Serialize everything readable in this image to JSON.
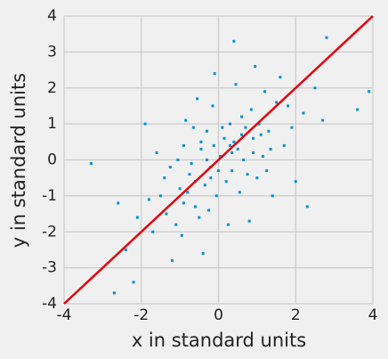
{
  "chart_data": {
    "type": "scatter",
    "xlabel": "x in standard units",
    "ylabel": "y in standard units",
    "x": [
      -0.12,
      0.35,
      -0.8,
      1.1,
      0.6,
      -1.4,
      0.9,
      -0.3,
      0.2,
      -0.6,
      1.5,
      -1.1,
      0.05,
      0.75,
      -0.45,
      1.9,
      -1.8,
      0.4,
      -0.2,
      1.2,
      -0.9,
      0.3,
      -0.05,
      0.65,
      -1.25,
      1.35,
      -0.7,
      0.15,
      0.85,
      -0.35,
      2.2,
      -2.1,
      0.55,
      -0.95,
      1.0,
      -0.15,
      0.45,
      -1.6,
      1.7,
      -0.5,
      0.1,
      -0.25,
      0.7,
      -1.0,
      1.25,
      -0.65,
      0.25,
      -1.35,
      1.6,
      -0.85,
      2.5,
      -2.4,
      0.95,
      -0.4,
      0.5,
      -1.2,
      1.4,
      -0.1,
      0.8,
      -0.55,
      3.9,
      3.6,
      2.8,
      -2.7,
      -3.3,
      -2.2,
      2.3,
      0.4,
      -1.9,
      2.0,
      -0.3,
      1.05,
      -0.75,
      0.6,
      -1.5,
      1.8,
      -0.2,
      0.35,
      -1.05,
      1.15,
      -2.6,
      2.7,
      -0.9,
      0.0,
      0.3,
      -0.6,
      1.3,
      -1.7,
      0.9,
      -0.45
    ],
    "y": [
      0.4,
      -0.3,
      -0.9,
      0.7,
      1.2,
      -0.5,
      0.2,
      0.8,
      -0.6,
      -1.3,
      1.6,
      -1.8,
      0.1,
      -0.4,
      0.3,
      0.9,
      -1.1,
      0.5,
      -0.2,
      1.9,
      0.4,
      1.0,
      -1.0,
      0.0,
      -0.2,
      0.3,
      -0.1,
      0.6,
      1.4,
      -0.7,
      1.3,
      -1.6,
      -0.9,
      -2.1,
      -0.5,
      1.5,
      2.1,
      0.2,
      0.4,
      -1.6,
      0.9,
      -1.4,
      0.9,
      -0.8,
      -0.3,
      0.9,
      -1.8,
      -1.5,
      2.3,
      1.1,
      2.0,
      -2.5,
      2.6,
      -2.6,
      0.3,
      -2.8,
      -1.0,
      2.4,
      -1.7,
      1.7,
      1.9,
      1.4,
      3.4,
      -3.7,
      -0.1,
      -3.4,
      -1.3,
      3.3,
      1.0,
      -0.6,
      0.0,
      1.0,
      -0.4,
      0.7,
      -1.0,
      1.5,
      -0.5,
      0.2,
      0.0,
      0.1,
      -1.2,
      1.1,
      -1.2,
      -0.3,
      0.4,
      -0.6,
      0.8,
      -2.0,
      0.6,
      0.5
    ],
    "color": "#008fd5",
    "fit_line": {
      "x": [
        -4,
        4
      ],
      "y": [
        -4,
        4
      ],
      "color": "#e5000b"
    },
    "xlim": [
      -4,
      4
    ],
    "ylim": [
      -4,
      4
    ],
    "xticks": [
      -4,
      -2,
      0,
      2,
      4
    ],
    "yticks": [
      -4,
      -3,
      -2,
      -1,
      0,
      1,
      2,
      3,
      4
    ],
    "grid": true
  }
}
